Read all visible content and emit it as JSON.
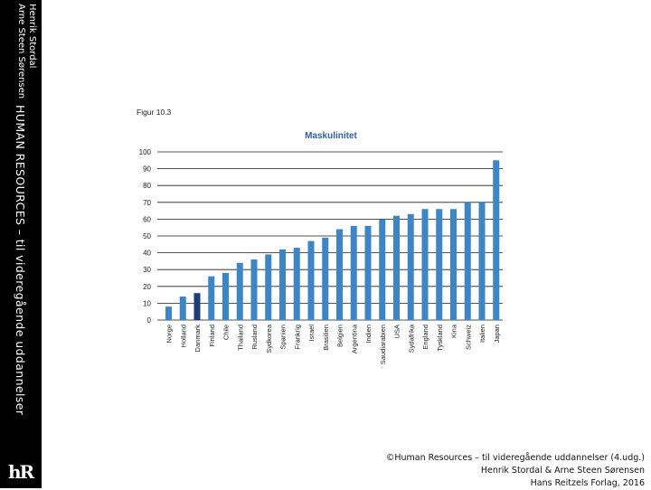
{
  "sidebar": {
    "author_line1": "Henrik Stordal",
    "author_line2": "Arne Steen Sørensen",
    "book_title": "HUMAN RESOURCES – til videregående uddannelser",
    "logo": "hR"
  },
  "figure_label": "Figur 10.3",
  "footer": {
    "line1": "©Human Resources – til videregående uddannelser (4.udg.)",
    "line2": "Henrik Stordal & Arne Steen Sørensen",
    "line3": "Hans Reitzels Forlag, 2016"
  },
  "colors": {
    "bar": "#3a86c8",
    "highlight_bar": "#1c3d7a",
    "title": "#2b5fa8",
    "sidebar": "#000000"
  },
  "chart_data": {
    "type": "bar",
    "title": "Maskulinitet",
    "xlabel": "",
    "ylabel": "",
    "ylim": [
      0,
      100
    ],
    "yticks": [
      0,
      10,
      20,
      30,
      40,
      50,
      60,
      70,
      80,
      90,
      100
    ],
    "grid": true,
    "highlight": "Danmark",
    "categories": [
      "Norge",
      "Holland",
      "Danmark",
      "Finland",
      "Chile",
      "Thailand",
      "Rusland",
      "Sydkorea",
      "Spanien",
      "Frankrig",
      "Israel",
      "Brasilien",
      "Belgien",
      "Argentina",
      "Indien",
      "Saudiarabien",
      "USA",
      "Sydafrika",
      "England",
      "Tyskland",
      "Kina",
      "Schweiz",
      "Italien",
      "Japan"
    ],
    "values": [
      8,
      14,
      16,
      26,
      28,
      34,
      36,
      39,
      42,
      43,
      47,
      49,
      54,
      56,
      56,
      60,
      62,
      63,
      66,
      66,
      66,
      70,
      70,
      95
    ]
  }
}
